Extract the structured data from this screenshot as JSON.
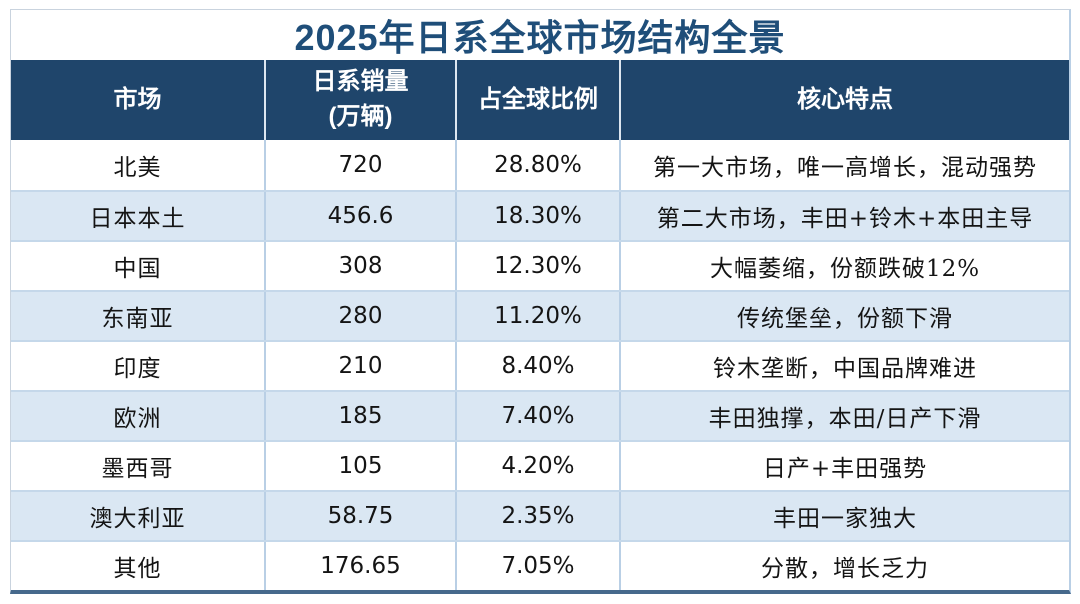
{
  "chart_data": {
    "type": "table",
    "title": "2025年日系全球市场结构全景",
    "columns": [
      "市场",
      "日系销量\n(万辆)",
      "占全球比例",
      "核心特点"
    ],
    "column_keys": [
      "market",
      "sales_10k_units",
      "global_share",
      "key_feature"
    ],
    "rows": [
      [
        "北美",
        "720",
        "28.80%",
        "第一大市场，唯一高增长，混动强势"
      ],
      [
        "日本本土",
        "456.6",
        "18.30%",
        "第二大市场，丰田+铃木+本田主导"
      ],
      [
        "中国",
        "308",
        "12.30%",
        "大幅萎缩，份额跌破12%"
      ],
      [
        "东南亚",
        "280",
        "11.20%",
        "传统堡垒，份额下滑"
      ],
      [
        "印度",
        "210",
        "8.40%",
        "铃木垄断，中国品牌难进"
      ],
      [
        "欧洲",
        "185",
        "7.40%",
        "丰田独撑，本田/日产下滑"
      ],
      [
        "墨西哥",
        "105",
        "4.20%",
        "日产+丰田强势"
      ],
      [
        "澳大利亚",
        "58.75",
        "2.35%",
        "丰田一家独大"
      ],
      [
        "其他",
        "176.65",
        "7.05%",
        "分散，增长乏力"
      ]
    ],
    "sales_values": [
      720,
      456.6,
      308,
      280,
      210,
      185,
      105,
      58.75,
      176.65
    ],
    "share_values_pct": [
      28.8,
      18.3,
      12.3,
      11.2,
      8.4,
      7.4,
      4.2,
      2.35,
      7.05
    ],
    "layout": {
      "grid": "on",
      "row_striping": "white / light-blue alternating",
      "alignment": "center"
    }
  },
  "colors": {
    "title_text": "#1F4E79",
    "header_bg": "#1F456B",
    "header_text": "#FFFFFF",
    "alt_row_bg": "#DAE7F3",
    "grid_line": "#B9CFE5",
    "outer_bottom_border": "#46698C",
    "body_text": "#141414"
  }
}
